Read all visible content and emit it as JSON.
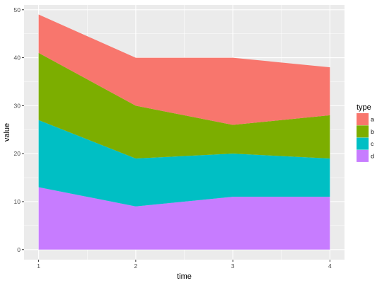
{
  "chart_data": {
    "type": "area",
    "stacked": true,
    "title": "",
    "xlabel": "time",
    "ylabel": "value",
    "x": [
      1,
      2,
      3,
      4
    ],
    "x_ticks": [
      "1",
      "2",
      "3",
      "4"
    ],
    "y_ticks": [
      "0",
      "10",
      "20",
      "30",
      "40",
      "50"
    ],
    "ylim": [
      0,
      50
    ],
    "grid": true,
    "legend": {
      "title": "type",
      "position": "right"
    },
    "series": [
      {
        "name": "d",
        "values": [
          13,
          9,
          11,
          11
        ],
        "color": "#C77CFF"
      },
      {
        "name": "c",
        "values": [
          14,
          10,
          9,
          8
        ],
        "color": "#00BFC4"
      },
      {
        "name": "b",
        "values": [
          14,
          11,
          6,
          9
        ],
        "color": "#7CAE00"
      },
      {
        "name": "a",
        "values": [
          8,
          10,
          14,
          10
        ],
        "color": "#F8766D"
      }
    ],
    "legend_order": [
      "a",
      "b",
      "c",
      "d"
    ],
    "panel_background": "#EBEBEB",
    "grid_color": "#FFFFFF"
  }
}
